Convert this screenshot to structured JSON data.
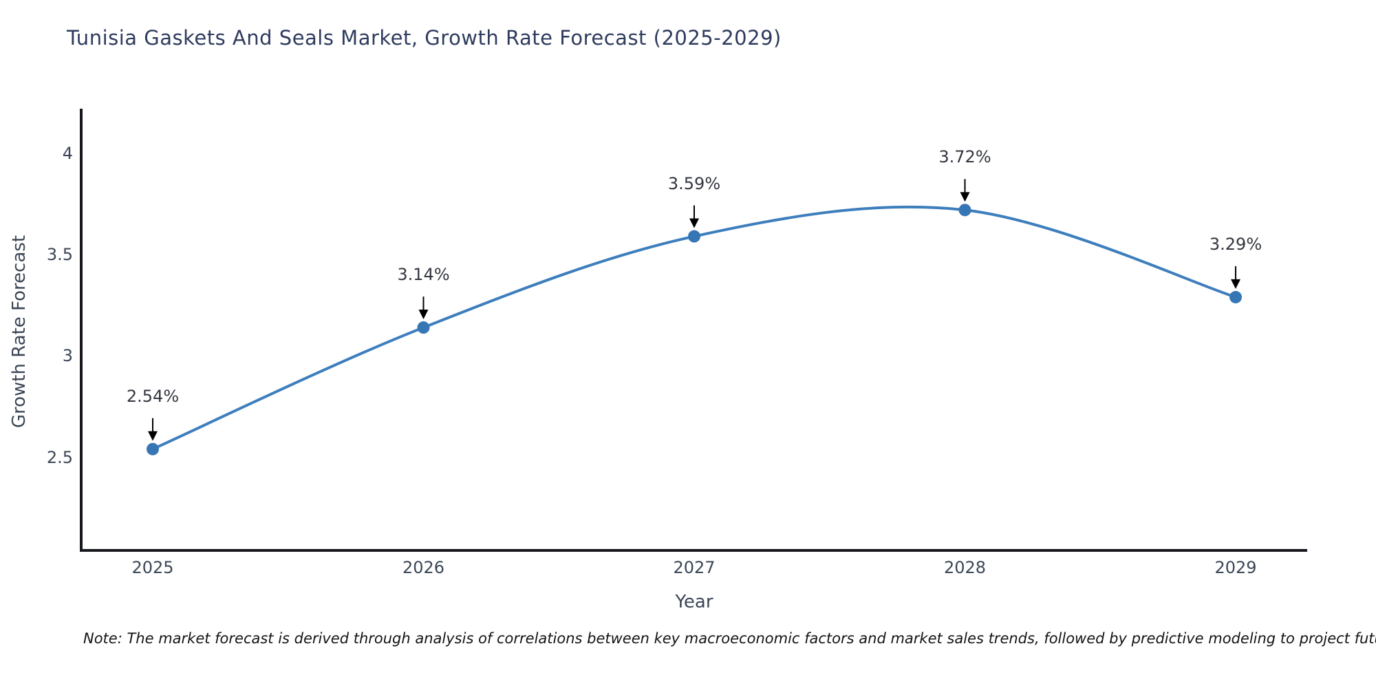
{
  "page": {
    "title": "Tunisia Gaskets And Seals Market, Growth Rate Forecast (2025-2029)",
    "note": "Note: The market forecast is derived through analysis of correlations between key macroeconomic factors and market sales trends, followed by predictive modeling to project future sales"
  },
  "chart_data": {
    "type": "line",
    "title": "Tunisia Gaskets And Seals Market, Growth Rate Forecast (2025-2029)",
    "xlabel": "Year",
    "ylabel": "Growth Rate Forecast",
    "x": [
      2025,
      2026,
      2027,
      2028,
      2029
    ],
    "values": [
      2.54,
      3.14,
      3.59,
      3.72,
      3.29
    ],
    "point_labels": [
      "2.54%",
      "3.14%",
      "3.59%",
      "3.72%",
      "3.29%"
    ],
    "xtick_labels": [
      "2025",
      "2026",
      "2027",
      "2028",
      "2029"
    ],
    "yticks": [
      2.5,
      3,
      3.5,
      4
    ],
    "ytick_labels": [
      "2.5",
      "3",
      "3.5",
      "4"
    ],
    "ylim": [
      2.04,
      4.22
    ],
    "grid": false,
    "legend_position": "none",
    "line_smoothing": "spline",
    "annotation_style": "value labels above points with downward black arrows",
    "colors": {
      "line": "#3d7ebd",
      "marker": "#3776b5",
      "axis_spine": "#16181d",
      "tick_text": "#3b4656",
      "title_text": "#2f3b5e",
      "annotation_text": "#33363f",
      "annotation_arrow": "#000000",
      "background": "#ffffff"
    }
  }
}
